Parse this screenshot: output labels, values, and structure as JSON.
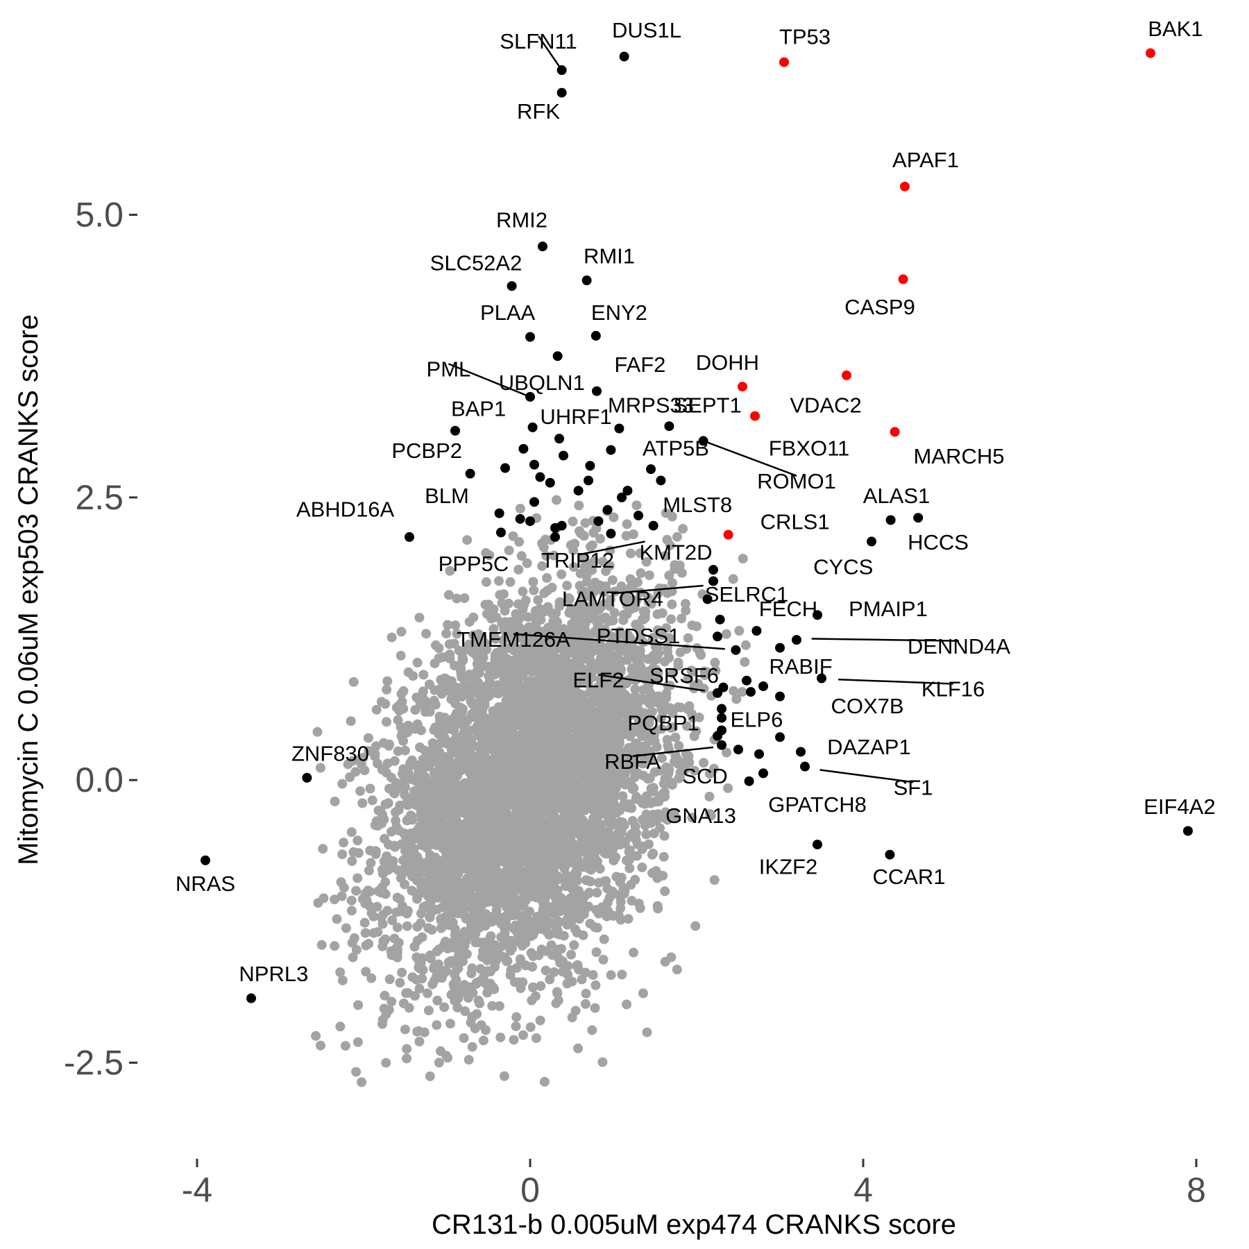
{
  "chart_data": {
    "type": "scatter",
    "xlabel": "CR131-b 0.005uM exp474 CRANKS score",
    "ylabel": "Mitomycin C 0.06uM exp503 CRANKS score",
    "xlim": [
      -4.7,
      8.3
    ],
    "ylim": [
      -3.35,
      6.9
    ],
    "x_ticks": [
      {
        "value": -4,
        "label": "-4"
      },
      {
        "value": 0,
        "label": "0"
      },
      {
        "value": 4,
        "label": "4"
      },
      {
        "value": 8,
        "label": "8"
      }
    ],
    "y_ticks": [
      {
        "value": 5.0,
        "label": "5.0"
      },
      {
        "value": 2.5,
        "label": "2.5"
      },
      {
        "value": 0.0,
        "label": "0.0"
      },
      {
        "value": -2.5,
        "label": "-2.5"
      }
    ],
    "grid": false,
    "colors": {
      "background_points": "#a3a3a3",
      "highlight_points": "#ff0000",
      "labeled_points": "#000000",
      "axis_text": "#4d4d4d"
    },
    "background_cloud": {
      "description_count": 5000,
      "center": [
        0.0,
        0.0
      ],
      "x_spread": 0.85,
      "y_spread": 0.85,
      "correlation": 0.35
    },
    "points": [
      {
        "x": 1.13,
        "y": 6.4,
        "label": "DUS1L",
        "color": "black"
      },
      {
        "x": 0.38,
        "y": 6.28,
        "label": "SLFN11",
        "color": "black"
      },
      {
        "x": 0.38,
        "y": 6.08,
        "label": "RFK",
        "color": "black"
      },
      {
        "x": 3.05,
        "y": 6.35,
        "label": "TP53",
        "color": "red"
      },
      {
        "x": 7.45,
        "y": 6.43,
        "label": "BAK1",
        "color": "red"
      },
      {
        "x": 4.5,
        "y": 5.25,
        "label": "APAF1",
        "color": "red"
      },
      {
        "x": 4.48,
        "y": 4.43,
        "label": "CASP9",
        "color": "red"
      },
      {
        "x": 3.8,
        "y": 3.58,
        "label": "VDAC2",
        "color": "red"
      },
      {
        "x": 2.55,
        "y": 3.48,
        "label": "DOHH",
        "color": "red"
      },
      {
        "x": 2.7,
        "y": 3.22,
        "label": "FBXO11",
        "color": "red"
      },
      {
        "x": 4.38,
        "y": 3.08,
        "label": "MARCH5",
        "color": "red"
      },
      {
        "x": 2.38,
        "y": 2.17,
        "label": "CRLS1",
        "color": "red"
      },
      {
        "x": 0.15,
        "y": 4.72,
        "label": "RMI2",
        "color": "black"
      },
      {
        "x": 0.68,
        "y": 4.42,
        "label": "RMI1",
        "color": "black"
      },
      {
        "x": -0.22,
        "y": 4.37,
        "label": "SLC52A2",
        "color": "black"
      },
      {
        "x": 0.0,
        "y": 3.92,
        "label": "PLAA",
        "color": "black"
      },
      {
        "x": 0.79,
        "y": 3.93,
        "label": "ENY2",
        "color": "black"
      },
      {
        "x": 0.33,
        "y": 3.75,
        "label": "",
        "color": "black"
      },
      {
        "x": 0.8,
        "y": 3.44,
        "label": "FAF2",
        "color": "black"
      },
      {
        "x": 0.0,
        "y": 3.39,
        "label": "UBQLN1",
        "color": "black"
      },
      {
        "x": 0.03,
        "y": 3.12,
        "label": "UHRF1",
        "color": "black"
      },
      {
        "x": 1.07,
        "y": 3.11,
        "label": "MRPS33",
        "color": "black"
      },
      {
        "x": 1.67,
        "y": 3.13,
        "label": "SEPT1",
        "color": "black"
      },
      {
        "x": -0.9,
        "y": 3.09,
        "label": "BAP1",
        "color": "black"
      },
      {
        "x": 2.08,
        "y": 3.0,
        "label": "ROMO1",
        "color": "black"
      },
      {
        "x": 0.35,
        "y": 3.02,
        "label": "",
        "color": "black"
      },
      {
        "x": -0.08,
        "y": 2.93,
        "label": "",
        "color": "black"
      },
      {
        "x": 0.97,
        "y": 2.92,
        "label": "",
        "color": "black"
      },
      {
        "x": 0.4,
        "y": 2.87,
        "label": "",
        "color": "black"
      },
      {
        "x": 0.05,
        "y": 2.79,
        "label": "",
        "color": "black"
      },
      {
        "x": 0.72,
        "y": 2.78,
        "label": "",
        "color": "black"
      },
      {
        "x": -0.3,
        "y": 2.76,
        "label": "",
        "color": "black"
      },
      {
        "x": 1.45,
        "y": 2.75,
        "label": "ATP5B",
        "color": "black"
      },
      {
        "x": -0.72,
        "y": 2.71,
        "label": "PCBP2",
        "color": "black"
      },
      {
        "x": 0.12,
        "y": 2.68,
        "label": "",
        "color": "black"
      },
      {
        "x": 1.57,
        "y": 2.65,
        "label": "",
        "color": "black"
      },
      {
        "x": 0.7,
        "y": 2.65,
        "label": "",
        "color": "black"
      },
      {
        "x": 0.24,
        "y": 2.63,
        "label": "",
        "color": "black"
      },
      {
        "x": 1.17,
        "y": 2.56,
        "label": "",
        "color": "black"
      },
      {
        "x": 0.58,
        "y": 2.56,
        "label": "",
        "color": "black"
      },
      {
        "x": 1.1,
        "y": 2.5,
        "label": "",
        "color": "black"
      },
      {
        "x": 0.05,
        "y": 2.46,
        "label": "",
        "color": "black"
      },
      {
        "x": 0.93,
        "y": 2.39,
        "label": "",
        "color": "black"
      },
      {
        "x": -0.37,
        "y": 2.36,
        "label": "",
        "color": "black"
      },
      {
        "x": 1.3,
        "y": 2.34,
        "label": "",
        "color": "black"
      },
      {
        "x": -0.12,
        "y": 2.31,
        "label": "",
        "color": "black"
      },
      {
        "x": 0.82,
        "y": 2.29,
        "label": "",
        "color": "black"
      },
      {
        "x": 0.0,
        "y": 2.29,
        "label": "",
        "color": "black"
      },
      {
        "x": 1.48,
        "y": 2.25,
        "label": "MLST8",
        "color": "black"
      },
      {
        "x": 0.3,
        "y": 2.23,
        "label": "",
        "color": "black"
      },
      {
        "x": 0.38,
        "y": 2.25,
        "label": "",
        "color": "black"
      },
      {
        "x": -0.35,
        "y": 2.19,
        "label": "",
        "color": "black"
      },
      {
        "x": 0.97,
        "y": 2.18,
        "label": "",
        "color": "black"
      },
      {
        "x": 0.3,
        "y": 2.15,
        "label": "",
        "color": "black"
      },
      {
        "x": -1.45,
        "y": 2.15,
        "label": "ABHD16A",
        "color": "black"
      },
      {
        "x": 4.33,
        "y": 2.3,
        "label": "ALAS1",
        "color": "black"
      },
      {
        "x": 4.66,
        "y": 2.32,
        "label": "HCCS",
        "color": "black"
      },
      {
        "x": 4.1,
        "y": 2.11,
        "label": "CYCS",
        "color": "black"
      },
      {
        "x": 2.2,
        "y": 1.86,
        "label": "KMT2D",
        "color": "black"
      },
      {
        "x": 2.2,
        "y": 1.76,
        "label": "",
        "color": "black"
      },
      {
        "x": 2.13,
        "y": 1.6,
        "label": "SELRC1",
        "color": "black"
      },
      {
        "x": 2.28,
        "y": 1.42,
        "label": "",
        "color": "black"
      },
      {
        "x": 3.45,
        "y": 1.46,
        "label": "PMAIP1",
        "color": "black"
      },
      {
        "x": 2.72,
        "y": 1.32,
        "label": "FECH",
        "color": "black"
      },
      {
        "x": 3.2,
        "y": 1.24,
        "label": "DENND4A",
        "color": "black"
      },
      {
        "x": 2.25,
        "y": 1.27,
        "label": "",
        "color": "black"
      },
      {
        "x": 3.0,
        "y": 1.17,
        "label": "",
        "color": "black"
      },
      {
        "x": 2.47,
        "y": 1.15,
        "label": "TMEM126A",
        "color": "black"
      },
      {
        "x": 3.5,
        "y": 0.9,
        "label": "KLF16",
        "color": "black"
      },
      {
        "x": 2.6,
        "y": 0.88,
        "label": "RABIF",
        "color": "black"
      },
      {
        "x": 2.8,
        "y": 0.83,
        "label": "",
        "color": "black"
      },
      {
        "x": 2.32,
        "y": 0.82,
        "label": "SRSF6",
        "color": "black"
      },
      {
        "x": 2.65,
        "y": 0.78,
        "label": "",
        "color": "black"
      },
      {
        "x": 2.25,
        "y": 0.77,
        "label": "",
        "color": "black"
      },
      {
        "x": 3.0,
        "y": 0.74,
        "label": "COX7B",
        "color": "black"
      },
      {
        "x": 2.3,
        "y": 0.63,
        "label": "",
        "color": "black"
      },
      {
        "x": 2.3,
        "y": 0.55,
        "label": "ELP6",
        "color": "black"
      },
      {
        "x": 2.3,
        "y": 0.44,
        "label": "",
        "color": "black"
      },
      {
        "x": 2.25,
        "y": 0.39,
        "label": "",
        "color": "black"
      },
      {
        "x": 3.0,
        "y": 0.38,
        "label": "DAZAP1",
        "color": "black"
      },
      {
        "x": 2.3,
        "y": 0.31,
        "label": "RBFA",
        "color": "black"
      },
      {
        "x": 2.5,
        "y": 0.27,
        "label": "",
        "color": "black"
      },
      {
        "x": 2.75,
        "y": 0.23,
        "label": "",
        "color": "black"
      },
      {
        "x": 3.25,
        "y": 0.25,
        "label": "",
        "color": "black"
      },
      {
        "x": 3.3,
        "y": 0.12,
        "label": "SF1",
        "color": "black"
      },
      {
        "x": 2.8,
        "y": 0.06,
        "label": "SCD",
        "color": "black"
      },
      {
        "x": 2.63,
        "y": -0.01,
        "label": "GNA13",
        "color": "black"
      },
      {
        "x": 3.45,
        "y": -0.57,
        "label": "IKZF2",
        "color": "black"
      },
      {
        "x": 4.32,
        "y": -0.66,
        "label": "CCAR1",
        "color": "black"
      },
      {
        "x": 7.9,
        "y": -0.45,
        "label": "EIF4A2",
        "color": "black"
      },
      {
        "x": -2.68,
        "y": 0.02,
        "label": "ZNF830",
        "color": "black"
      },
      {
        "x": -3.9,
        "y": -0.71,
        "label": "NRAS",
        "color": "black"
      },
      {
        "x": -3.35,
        "y": -1.93,
        "label": "NPRL3",
        "color": "black"
      }
    ],
    "labels": [
      {
        "text": "SLFN11",
        "x": 0.1,
        "y": 6.52,
        "px": 0.38,
        "py": 6.28
      },
      {
        "text": "DUS1L",
        "x": 1.4,
        "y": 6.62
      },
      {
        "text": "RFK",
        "x": 0.1,
        "y": 5.9
      },
      {
        "text": "TP53",
        "x": 3.3,
        "y": 6.56
      },
      {
        "text": "BAK1",
        "x": 7.75,
        "y": 6.63
      },
      {
        "text": "APAF1",
        "x": 4.75,
        "y": 5.47
      },
      {
        "text": "RMI2",
        "x": -0.1,
        "y": 4.94
      },
      {
        "text": "SLC52A2",
        "x": -0.65,
        "y": 4.56
      },
      {
        "text": "RMI1",
        "x": 0.95,
        "y": 4.62
      },
      {
        "text": "CASP9",
        "x": 4.2,
        "y": 4.17
      },
      {
        "text": "PLAA",
        "x": -0.27,
        "y": 4.12
      },
      {
        "text": "ENY2",
        "x": 1.07,
        "y": 4.12
      },
      {
        "text": "PML",
        "x": -0.98,
        "y": 3.62,
        "px": 0.0,
        "py": 3.39
      },
      {
        "text": "UBQLN1",
        "x": 0.14,
        "y": 3.5
      },
      {
        "text": "FAF2",
        "x": 1.32,
        "y": 3.66
      },
      {
        "text": "DOHH",
        "x": 2.37,
        "y": 3.68
      },
      {
        "text": "VDAC2",
        "x": 3.55,
        "y": 3.3
      },
      {
        "text": "BAP1",
        "x": -0.62,
        "y": 3.27
      },
      {
        "text": "UHRF1",
        "x": 0.55,
        "y": 3.2
      },
      {
        "text": "MRPS33",
        "x": 1.45,
        "y": 3.3
      },
      {
        "text": "SEPT1",
        "x": 2.13,
        "y": 3.3
      },
      {
        "text": "FBXO11",
        "x": 3.35,
        "y": 2.92
      },
      {
        "text": "MARCH5",
        "x": 5.15,
        "y": 2.85
      },
      {
        "text": "PCBP2",
        "x": -1.24,
        "y": 2.9
      },
      {
        "text": "ATP5B",
        "x": 1.75,
        "y": 2.92
      },
      {
        "text": "ROMO1",
        "x": 3.2,
        "y": 2.63,
        "px": 2.08,
        "py": 3.0
      },
      {
        "text": "ALAS1",
        "x": 4.4,
        "y": 2.5
      },
      {
        "text": "BLM",
        "x": -1.0,
        "y": 2.5
      },
      {
        "text": "ABHD16A",
        "x": -2.22,
        "y": 2.38
      },
      {
        "text": "MLST8",
        "x": 2.01,
        "y": 2.42
      },
      {
        "text": "CRLS1",
        "x": 3.18,
        "y": 2.27
      },
      {
        "text": "HCCS",
        "x": 4.9,
        "y": 2.09
      },
      {
        "text": "CYCS",
        "x": 3.76,
        "y": 1.87
      },
      {
        "text": "PPP5C",
        "x": -0.68,
        "y": 1.9
      },
      {
        "text": "TRIP12",
        "x": 0.57,
        "y": 1.93,
        "px": 1.38,
        "py": 2.11
      },
      {
        "text": "KMT2D",
        "x": 1.75,
        "y": 2.0
      },
      {
        "text": "LAMTOR4",
        "x": 0.99,
        "y": 1.59,
        "px": 2.08,
        "py": 1.72
      },
      {
        "text": "SELRC1",
        "x": 2.6,
        "y": 1.63
      },
      {
        "text": "FECH",
        "x": 3.1,
        "y": 1.5
      },
      {
        "text": "PMAIP1",
        "x": 4.3,
        "y": 1.5
      },
      {
        "text": "TMEM126A",
        "x": -0.2,
        "y": 1.23,
        "px": 2.34,
        "py": 1.16
      },
      {
        "text": "PTDSS1",
        "x": 1.3,
        "y": 1.26
      },
      {
        "text": "DENND4A",
        "x": 5.15,
        "y": 1.17,
        "px": 3.38,
        "py": 1.25
      },
      {
        "text": "RABIF",
        "x": 3.25,
        "y": 0.99
      },
      {
        "text": "ELF2",
        "x": 0.82,
        "y": 0.87,
        "px": 2.1,
        "py": 0.79
      },
      {
        "text": "SRSF6",
        "x": 1.85,
        "y": 0.91
      },
      {
        "text": "KLF16",
        "x": 5.08,
        "y": 0.79,
        "px": 3.7,
        "py": 0.89
      },
      {
        "text": "COX7B",
        "x": 4.05,
        "y": 0.64
      },
      {
        "text": "PQBP1",
        "x": 1.6,
        "y": 0.49
      },
      {
        "text": "ELP6",
        "x": 2.72,
        "y": 0.52
      },
      {
        "text": "DAZAP1",
        "x": 4.07,
        "y": 0.28
      },
      {
        "text": "RBFA",
        "x": 1.23,
        "y": 0.15,
        "px": 2.2,
        "py": 0.29
      },
      {
        "text": "SCD",
        "x": 2.1,
        "y": 0.02
      },
      {
        "text": "SF1",
        "x": 4.6,
        "y": -0.08,
        "px": 3.48,
        "py": 0.09
      },
      {
        "text": "GNA13",
        "x": 2.05,
        "y": -0.33
      },
      {
        "text": "GPATCH8",
        "x": 3.45,
        "y": -0.23
      },
      {
        "text": "ZNF830",
        "x": -2.4,
        "y": 0.22
      },
      {
        "text": "EIF4A2",
        "x": 7.8,
        "y": -0.25
      },
      {
        "text": "NRAS",
        "x": -3.9,
        "y": -0.93
      },
      {
        "text": "IKZF2",
        "x": 3.1,
        "y": -0.78
      },
      {
        "text": "CCAR1",
        "x": 4.55,
        "y": -0.87
      },
      {
        "text": "NPRL3",
        "x": -3.08,
        "y": -1.73
      }
    ]
  }
}
